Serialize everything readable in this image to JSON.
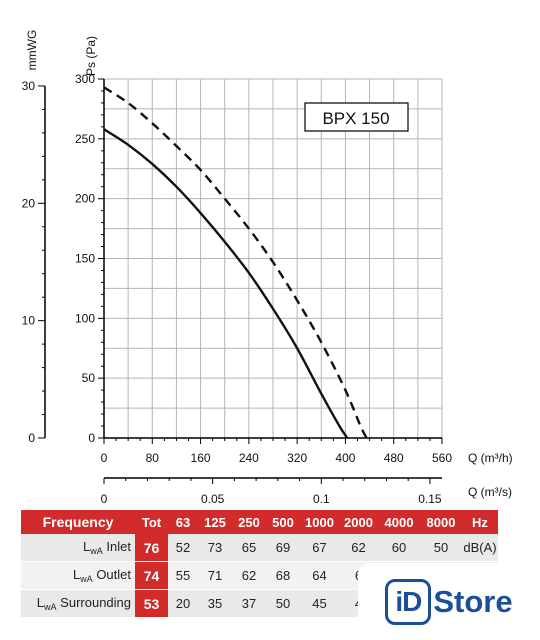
{
  "chart_data": {
    "type": "line",
    "model_label": "BPX 150",
    "y_left_label": "Ps (Pa)",
    "y_outer_label": "mmWG",
    "x_primary_label": "Q (m³/h)",
    "x_secondary_label": "Q (m³/s)",
    "ylim": [
      0,
      300
    ],
    "xlim": [
      0,
      560
    ],
    "y_ticks": [
      0,
      50,
      100,
      150,
      200,
      250,
      300
    ],
    "mmwg_ticks": [
      0,
      10,
      20,
      30
    ],
    "x_ticks": [
      0,
      80,
      160,
      240,
      320,
      400,
      480,
      560
    ],
    "x2_ticks": [
      "0",
      "0.05",
      "0.1",
      "0.15"
    ],
    "x2_tick_values": [
      0,
      0.05,
      0.1,
      0.15
    ],
    "grid": true,
    "series": [
      {
        "style": "solid",
        "x": [
          0,
          40,
          80,
          120,
          160,
          200,
          240,
          280,
          320,
          360,
          390,
          403
        ],
        "y": [
          258,
          245,
          229,
          210,
          188,
          164,
          138,
          108,
          75,
          37,
          10,
          0
        ]
      },
      {
        "style": "dashed",
        "x": [
          0,
          40,
          80,
          120,
          160,
          200,
          240,
          280,
          320,
          360,
          400,
          425,
          435
        ],
        "y": [
          293,
          280,
          263,
          244,
          224,
          200,
          175,
          147,
          115,
          80,
          40,
          10,
          0
        ]
      }
    ]
  },
  "sound_table": {
    "header": {
      "label": "Frequency",
      "tot": "Tot",
      "bands": [
        "63",
        "125",
        "250",
        "500",
        "1000",
        "2000",
        "4000",
        "8000"
      ],
      "unit": "Hz"
    },
    "rows": [
      {
        "prefix": "L",
        "sub": "wA",
        "name": "Inlet",
        "tot": "76",
        "values": [
          "52",
          "73",
          "65",
          "69",
          "67",
          "62",
          "60",
          "50"
        ],
        "unit": "dB(A)"
      },
      {
        "prefix": "L",
        "sub": "wA",
        "name": "Outlet",
        "tot": "74",
        "values": [
          "55",
          "71",
          "62",
          "68",
          "64",
          "6",
          "",
          ""
        ],
        "unit": ""
      },
      {
        "prefix": "L",
        "sub": "wA",
        "name": "Surrounding",
        "tot": "53",
        "values": [
          "20",
          "35",
          "37",
          "50",
          "45",
          "4",
          "",
          ""
        ],
        "unit": ""
      }
    ]
  },
  "store_logo": {
    "id_text": "iD",
    "store_text": "Store",
    "color": "#1b4f9c"
  },
  "colors": {
    "accent": "#d22b2b",
    "curve": "#111111",
    "grid": "#b5b5b5"
  }
}
